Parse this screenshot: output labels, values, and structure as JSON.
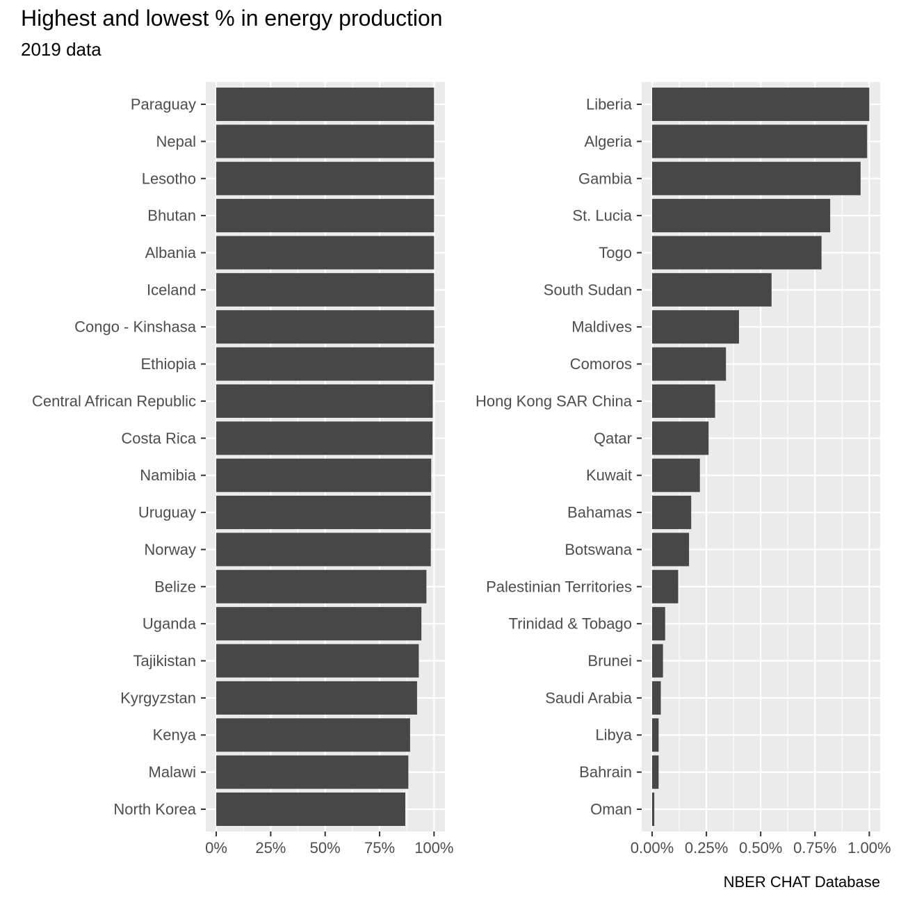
{
  "title": "Highest and lowest % in energy production",
  "subtitle": "2019 data",
  "caption": "NBER CHAT Database",
  "colors": {
    "panel": "#ebebeb",
    "grid": "#ffffff",
    "bar": "#474747",
    "text": "#4d4d4d"
  },
  "chart_data": [
    {
      "type": "bar",
      "orientation": "horizontal",
      "title": "",
      "xlabel": "",
      "ylabel": "",
      "xlim": [
        -0.048,
        1.05
      ],
      "ticks": [
        0,
        0.25,
        0.5,
        0.75,
        1.0
      ],
      "tick_labels": [
        "0%",
        "25%",
        "50%",
        "75%",
        "100%"
      ],
      "grid": true,
      "categories": [
        "Paraguay",
        "Nepal",
        "Lesotho",
        "Bhutan",
        "Albania",
        "Iceland",
        "Congo - Kinshasa",
        "Ethiopia",
        "Central African Republic",
        "Costa Rica",
        "Namibia",
        "Uruguay",
        "Norway",
        "Belize",
        "Uganda",
        "Tajikistan",
        "Kyrgyzstan",
        "Kenya",
        "Malawi",
        "North Korea"
      ],
      "values": [
        1.0,
        1.0,
        1.0,
        1.0,
        1.0,
        1.0,
        1.0,
        1.0,
        0.994,
        0.993,
        0.987,
        0.985,
        0.985,
        0.965,
        0.942,
        0.93,
        0.922,
        0.89,
        0.882,
        0.868
      ]
    },
    {
      "type": "bar",
      "orientation": "horizontal",
      "title": "",
      "xlabel": "",
      "ylabel": "",
      "xlim": [
        -0.048,
        1.05
      ],
      "ticks": [
        0,
        0.25,
        0.5,
        0.75,
        1.0
      ],
      "tick_labels": [
        "0.00%",
        "0.25%",
        "0.50%",
        "0.75%",
        "1.00%"
      ],
      "grid": true,
      "categories": [
        "Liberia",
        "Algeria",
        "Gambia",
        "St. Lucia",
        "Togo",
        "South Sudan",
        "Maldives",
        "Comoros",
        "Hong Kong SAR China",
        "Qatar",
        "Kuwait",
        "Bahamas",
        "Botswana",
        "Palestinian Territories",
        "Trinidad & Tobago",
        "Brunei",
        "Saudi Arabia",
        "Libya",
        "Bahrain",
        "Oman"
      ],
      "values": [
        1.0,
        0.99,
        0.96,
        0.82,
        0.78,
        0.55,
        0.4,
        0.34,
        0.29,
        0.26,
        0.22,
        0.18,
        0.17,
        0.12,
        0.06,
        0.05,
        0.04,
        0.03,
        0.03,
        0.01
      ]
    }
  ]
}
